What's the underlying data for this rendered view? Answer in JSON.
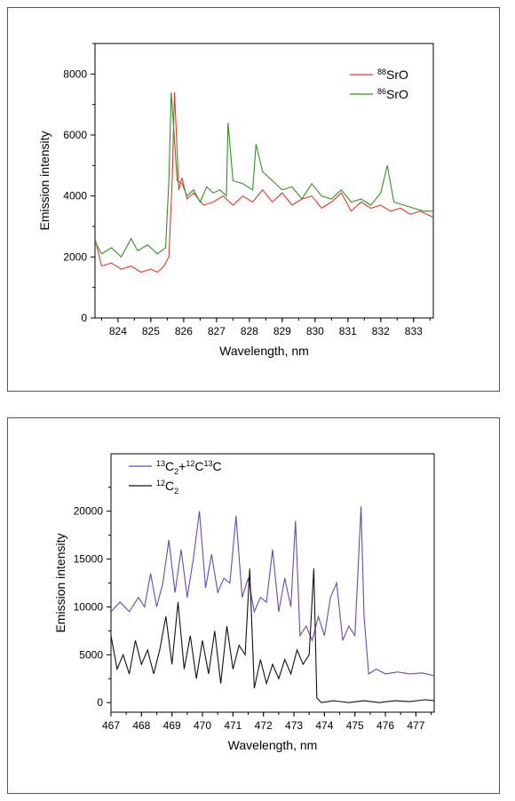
{
  "chart_data": [
    {
      "type": "line",
      "xlabel": "Wavelength, nm",
      "ylabel": "Emission intensity",
      "xlim": [
        823.3,
        833.6
      ],
      "ylim": [
        0,
        9000
      ],
      "xticks": [
        824,
        825,
        826,
        827,
        828,
        829,
        830,
        831,
        832,
        833
      ],
      "yticks": [
        0,
        2000,
        4000,
        6000,
        8000
      ],
      "legend_position": "top-right",
      "grid": false,
      "series": [
        {
          "name_sup": "88",
          "name_base": "SrO",
          "color": "#e03a2e",
          "x": [
            823.3,
            823.5,
            823.8,
            824.1,
            824.4,
            824.7,
            825.0,
            825.2,
            825.4,
            825.55,
            825.65,
            825.72,
            825.78,
            825.85,
            825.95,
            826.1,
            826.3,
            826.6,
            826.9,
            827.2,
            827.5,
            827.8,
            828.1,
            828.4,
            828.7,
            829.0,
            829.3,
            829.6,
            829.9,
            830.2,
            830.5,
            830.8,
            831.1,
            831.4,
            831.7,
            832.0,
            832.3,
            832.6,
            832.9,
            833.2,
            833.6
          ],
          "y": [
            2600,
            1700,
            1800,
            1600,
            1700,
            1500,
            1600,
            1500,
            1700,
            2000,
            4500,
            7400,
            6000,
            4200,
            4600,
            3900,
            4100,
            3700,
            3800,
            4000,
            3700,
            4000,
            3800,
            4200,
            3800,
            4100,
            3700,
            3900,
            4000,
            3600,
            3800,
            4100,
            3500,
            3800,
            3600,
            3700,
            3500,
            3600,
            3400,
            3500,
            3300
          ]
        },
        {
          "name_sup": "86",
          "name_base": "SrO",
          "color": "#3a8c2a",
          "x": [
            823.3,
            823.5,
            823.8,
            824.1,
            824.4,
            824.6,
            824.9,
            825.2,
            825.45,
            825.55,
            825.62,
            825.68,
            825.8,
            825.95,
            826.1,
            826.3,
            826.5,
            826.7,
            826.9,
            827.1,
            827.3,
            827.35,
            827.5,
            827.8,
            828.1,
            828.2,
            828.4,
            828.7,
            829.0,
            829.3,
            829.6,
            829.9,
            830.2,
            830.5,
            830.8,
            831.1,
            831.4,
            831.7,
            832.0,
            832.2,
            832.4,
            832.7,
            833.0,
            833.3,
            833.6
          ],
          "y": [
            2500,
            2100,
            2300,
            2000,
            2600,
            2200,
            2400,
            2100,
            2300,
            4500,
            7400,
            6500,
            4500,
            4400,
            4000,
            4200,
            3800,
            4300,
            4100,
            4200,
            4000,
            6400,
            4500,
            4400,
            4200,
            5700,
            4800,
            4500,
            4200,
            4300,
            3900,
            4400,
            4000,
            3900,
            4200,
            3800,
            3900,
            3700,
            4100,
            5000,
            3800,
            3700,
            3600,
            3500,
            3500
          ]
        }
      ]
    },
    {
      "type": "line",
      "xlabel": "Wavelength, nm",
      "ylabel": "Emission intensity",
      "xlim": [
        467,
        477.6
      ],
      "ylim": [
        -1000,
        26000
      ],
      "xticks": [
        467,
        468,
        469,
        470,
        471,
        472,
        473,
        474,
        475,
        476,
        477
      ],
      "yticks": [
        0,
        5000,
        10000,
        15000,
        20000
      ],
      "legend_position": "top-left",
      "grid": false,
      "series": [
        {
          "name_parts": [
            {
              "t": "13",
              "s": "sup"
            },
            {
              "t": "C",
              "s": "base"
            },
            {
              "t": "2",
              "s": "sub"
            },
            {
              "t": "+",
              "s": "base"
            },
            {
              "t": "12",
              "s": "sup"
            },
            {
              "t": "C",
              "s": "base"
            },
            {
              "t": "13",
              "s": "sup"
            },
            {
              "t": "C",
              "s": "base"
            }
          ],
          "color": "#6a4aa8",
          "x": [
            467.0,
            467.3,
            467.6,
            467.9,
            468.1,
            468.3,
            468.5,
            468.7,
            468.9,
            469.1,
            469.3,
            469.5,
            469.7,
            469.9,
            470.1,
            470.3,
            470.5,
            470.7,
            470.9,
            471.1,
            471.3,
            471.5,
            471.7,
            471.9,
            472.1,
            472.3,
            472.5,
            472.7,
            472.9,
            473.05,
            473.2,
            473.4,
            473.6,
            473.8,
            474.0,
            474.2,
            474.4,
            474.6,
            474.8,
            475.0,
            475.2,
            475.3,
            475.45,
            475.7,
            476.0,
            476.4,
            476.8,
            477.2,
            477.6
          ],
          "y": [
            9500,
            10500,
            9500,
            11000,
            10000,
            13500,
            10000,
            12500,
            17000,
            11500,
            16000,
            11000,
            15000,
            20000,
            12000,
            15500,
            11500,
            13000,
            12500,
            19500,
            11000,
            13000,
            9500,
            11000,
            10500,
            16000,
            9500,
            13000,
            10000,
            19000,
            7000,
            8000,
            6500,
            9000,
            7000,
            11000,
            12500,
            6500,
            8000,
            7000,
            20500,
            9000,
            3000,
            3500,
            3000,
            3200,
            3000,
            3100,
            2800
          ]
        },
        {
          "name_parts": [
            {
              "t": "12",
              "s": "sup"
            },
            {
              "t": "C",
              "s": "base"
            },
            {
              "t": "2",
              "s": "sub"
            }
          ],
          "color": "#111111",
          "x": [
            467.0,
            467.2,
            467.4,
            467.6,
            467.8,
            468.0,
            468.2,
            468.4,
            468.6,
            468.8,
            469.0,
            469.2,
            469.4,
            469.6,
            469.8,
            470.0,
            470.2,
            470.4,
            470.6,
            470.8,
            471.0,
            471.2,
            471.4,
            471.55,
            471.7,
            471.9,
            472.1,
            472.3,
            472.5,
            472.7,
            472.9,
            473.1,
            473.3,
            473.5,
            473.65,
            473.75,
            473.9,
            474.3,
            474.8,
            475.3,
            475.8,
            476.3,
            476.8,
            477.3,
            477.6
          ],
          "y": [
            7000,
            3500,
            5000,
            3000,
            6500,
            4000,
            5500,
            3000,
            5500,
            9000,
            4000,
            10500,
            3500,
            7000,
            2500,
            6500,
            3000,
            7500,
            2000,
            8000,
            3500,
            6000,
            5000,
            14000,
            1500,
            4500,
            2000,
            4000,
            2500,
            4500,
            3000,
            5500,
            4000,
            5000,
            14000,
            500,
            0,
            200,
            0,
            200,
            0,
            200,
            100,
            300,
            200
          ]
        }
      ]
    }
  ]
}
